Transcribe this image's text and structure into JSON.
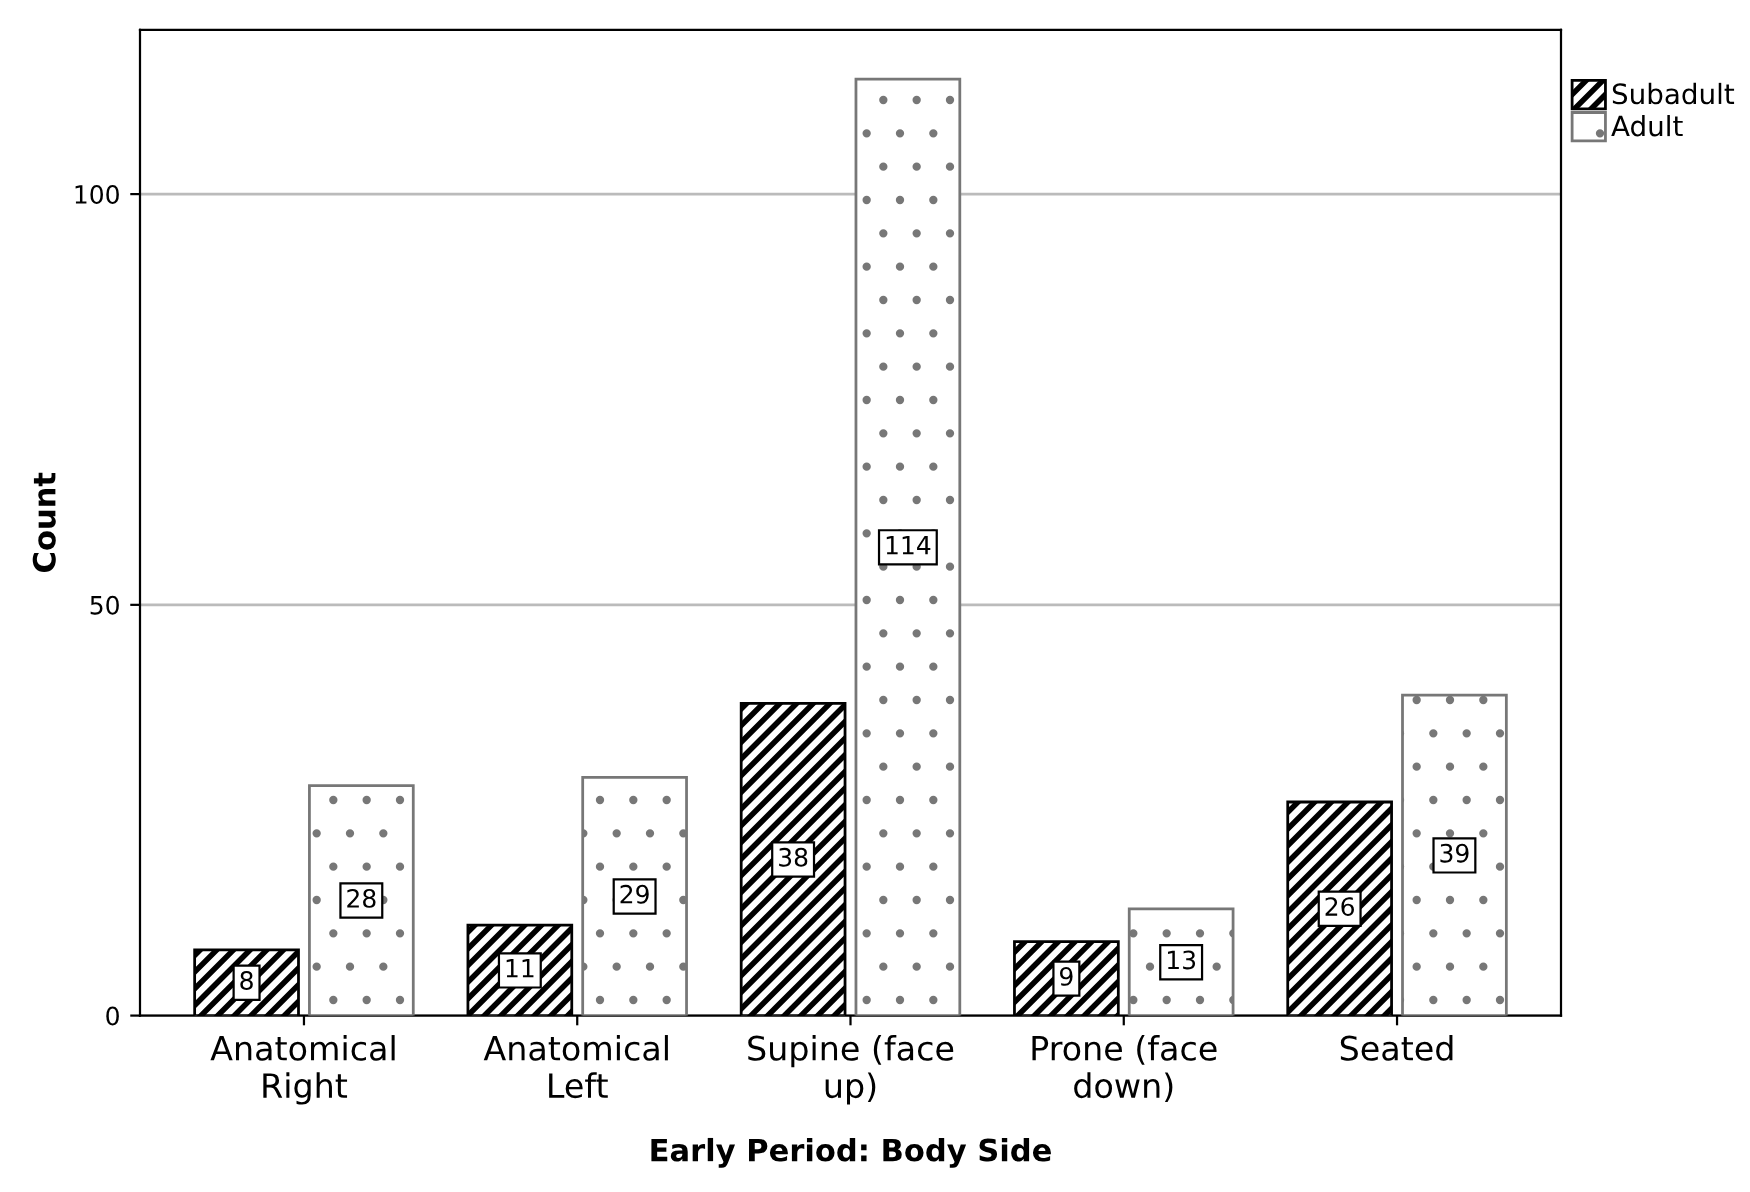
{
  "chart_data": {
    "type": "bar",
    "xlabel": "Early Period: Body Side",
    "ylabel": "Count",
    "categories": [
      "Anatomical\nRight",
      "Anatomical\nLeft",
      "Supine (face\nup)",
      "Prone (face\ndown)",
      "Seated"
    ],
    "series": [
      {
        "name": "Subadult",
        "color": "#000000",
        "values": [
          8,
          11,
          38,
          9,
          26
        ]
      },
      {
        "name": "Adult",
        "color": "#777777",
        "values": [
          28,
          29,
          114,
          13,
          39
        ]
      }
    ],
    "ylim": [
      0,
      120
    ],
    "yticks": [
      0,
      50,
      100
    ],
    "grid": "y",
    "legend": "top right",
    "data_labels": true
  }
}
